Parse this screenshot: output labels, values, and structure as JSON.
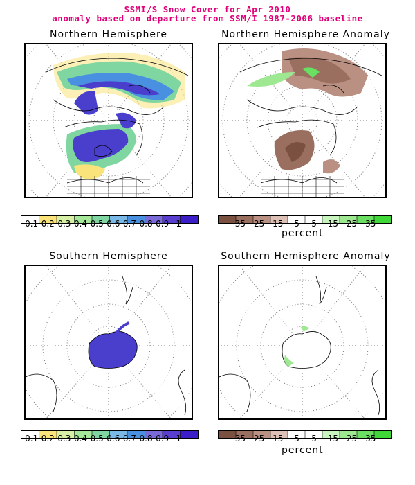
{
  "header": {
    "title_line1": "SSMI/S Snow Cover for Apr 2010",
    "title_line2": "anomaly based on departure from SSM/I 1987-2006 baseline"
  },
  "panels": {
    "nh": {
      "title": "Northern Hemisphere"
    },
    "nh_anom": {
      "title": "Northern Hemisphere Anomaly"
    },
    "sh": {
      "title": "Southern Hemisphere"
    },
    "sh_anom": {
      "title": "Southern Hemisphere Anomaly"
    }
  },
  "colorbars": {
    "fraction": {
      "ticks": [
        "0.1",
        "0.2",
        "0.3",
        "0.4",
        "0.5",
        "0.6",
        "0.7",
        "0.8",
        "0.9",
        "1"
      ],
      "colors": [
        "#ffffff",
        "#f9e37a",
        "#d8f0a6",
        "#a6e89a",
        "#80d6a0",
        "#7ab8e8",
        "#4a90e0",
        "#7a6ad8",
        "#5a3ed0",
        "#3c1ec8"
      ]
    },
    "anomaly": {
      "ticks": [
        "-35",
        "-25",
        "-15",
        "-5",
        "5",
        "15",
        "25",
        "35"
      ],
      "unit": "percent",
      "colors": [
        "#7a5040",
        "#9a6f60",
        "#b99082",
        "#dcc0b6",
        "#ffffff",
        "#ffffff",
        "#c8f4c0",
        "#9ee892",
        "#6adf62",
        "#40d838"
      ]
    }
  },
  "colors": {
    "title": "#e0007a",
    "snow_high": "#4a3ecc"
  }
}
